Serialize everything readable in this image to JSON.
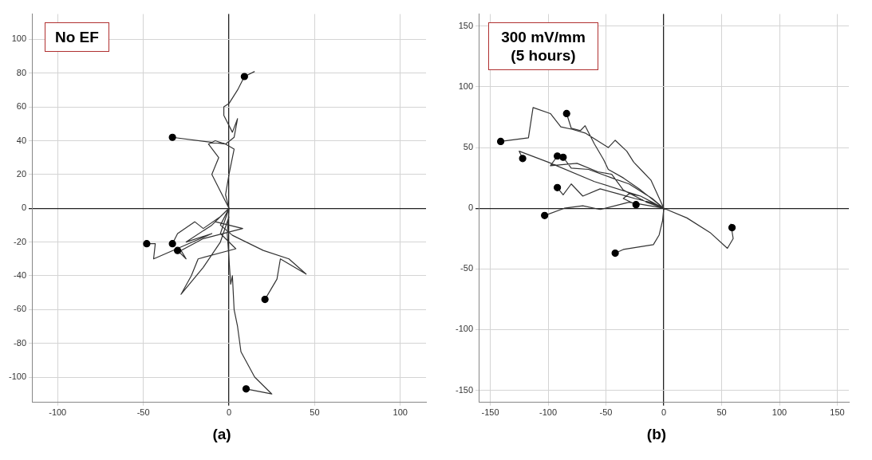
{
  "chart_data": [
    {
      "type": "line",
      "annotations": [
        "No EF",
        "(a)"
      ],
      "xlim": [
        -115,
        115
      ],
      "ylim": [
        -115,
        115
      ],
      "xticks": [
        -100,
        -50,
        0,
        50,
        100
      ],
      "yticks": [
        -100,
        -80,
        -60,
        -40,
        -20,
        0,
        20,
        40,
        60,
        80,
        100
      ],
      "grid": true,
      "series": [
        {
          "color": "#333333",
          "marker": "none",
          "x": [
            0,
            -2,
            0,
            3,
            -2,
            3,
            5,
            2,
            -3,
            -3,
            0,
            5,
            9,
            15,
            null,
            0,
            -5,
            -10,
            -6,
            -12,
            -8,
            -2,
            -33,
            null,
            0,
            -10,
            -25,
            -10,
            -44,
            -43,
            -48,
            null,
            0,
            -5,
            -15,
            -20,
            -30,
            -33,
            null,
            0,
            -8,
            8,
            -15,
            -28,
            -25,
            -30,
            null,
            0,
            -5,
            2,
            20,
            35,
            45,
            30,
            28,
            21,
            null,
            0,
            -1,
            0,
            1,
            2,
            3,
            5,
            7,
            15,
            25,
            10,
            null,
            0,
            -5,
            4,
            -18,
            -22,
            -28,
            -15,
            -5,
            0
          ],
          "values": [
            0,
            8,
            20,
            35,
            38,
            42,
            53,
            45,
            55,
            60,
            62,
            70,
            78,
            81,
            null,
            0,
            10,
            20,
            30,
            38,
            40,
            38,
            42,
            null,
            0,
            -10,
            -20,
            -15,
            -30,
            -21,
            -21,
            null,
            0,
            -5,
            -12,
            -8,
            -15,
            -21,
            null,
            0,
            -8,
            -12,
            -18,
            -25,
            -30,
            -25,
            null,
            0,
            -10,
            -16,
            -25,
            -30,
            -39,
            -30,
            -42,
            -54,
            null,
            0,
            -15,
            -30,
            -45,
            -40,
            -60,
            -70,
            -85,
            -100,
            -110,
            -107,
            null,
            0,
            -15,
            -24,
            -30,
            -40,
            -51,
            -35,
            -20,
            -5
          ]
        },
        {
          "type": "scatter",
          "color": "#000000",
          "marker": "circle",
          "x": [
            9,
            -33,
            -48,
            -33,
            -30,
            21,
            10
          ],
          "values": [
            78,
            42,
            -21,
            -21,
            -25,
            -54,
            -107
          ]
        }
      ]
    },
    {
      "type": "line",
      "annotations": [
        "300 mV/mm (5 hours)",
        "(b)"
      ],
      "xlim": [
        -160,
        160
      ],
      "ylim": [
        -160,
        160
      ],
      "xticks": [
        -150,
        -100,
        -50,
        0,
        50,
        100,
        150
      ],
      "yticks": [
        -150,
        -100,
        -50,
        0,
        50,
        100,
        150
      ],
      "grid": true,
      "series": [
        {
          "color": "#333333",
          "marker": "none",
          "x": [
            0,
            -11,
            -19,
            -26,
            -32,
            -42,
            -48,
            -68,
            -79,
            -89,
            -98,
            -113,
            -117,
            -141,
            null,
            0,
            -20,
            -35,
            -48,
            -52,
            -60,
            -68,
            -72,
            -80,
            -84,
            null,
            0,
            -20,
            -60,
            -100,
            -125,
            -122,
            null,
            0,
            -15,
            -35,
            -45,
            -57,
            -75,
            -98,
            -92,
            null,
            0,
            -10,
            -30,
            -45,
            -65,
            -80,
            -87,
            null,
            0,
            -12,
            -25,
            -40,
            -55,
            -70,
            -80,
            -87,
            -92,
            null,
            0,
            -30,
            -55,
            -70,
            -86,
            -103,
            null,
            0,
            -10,
            -20,
            -30,
            -35,
            -24,
            null,
            0,
            -1,
            -4,
            -9,
            -35,
            -42,
            null,
            0,
            20,
            40,
            55,
            60,
            58,
            59
          ],
          "values": [
            0,
            23,
            31,
            38,
            47,
            56,
            50,
            62,
            65,
            67,
            78,
            83,
            58,
            55,
            null,
            0,
            15,
            25,
            32,
            40,
            53,
            68,
            64,
            66,
            78,
            null,
            0,
            10,
            22,
            38,
            47,
            41,
            null,
            0,
            5,
            15,
            28,
            30,
            37,
            35,
            43,
            null,
            0,
            8,
            20,
            25,
            32,
            33,
            42,
            null,
            0,
            5,
            8,
            12,
            16,
            10,
            20,
            11,
            17,
            null,
            0,
            5,
            -1,
            2,
            0,
            -6,
            null,
            0,
            5,
            10,
            12,
            8,
            3,
            null,
            0,
            -10,
            -22,
            -30,
            -34,
            -37,
            null,
            0,
            -8,
            -20,
            -33,
            -25,
            -13,
            -16
          ]
        },
        {
          "type": "scatter",
          "color": "#000000",
          "marker": "circle",
          "x": [
            -141,
            -84,
            -122,
            -92,
            -87,
            -92,
            -103,
            -24,
            -42,
            59
          ],
          "values": [
            55,
            78,
            41,
            43,
            42,
            17,
            -6,
            3,
            -37,
            -16
          ]
        }
      ]
    }
  ]
}
